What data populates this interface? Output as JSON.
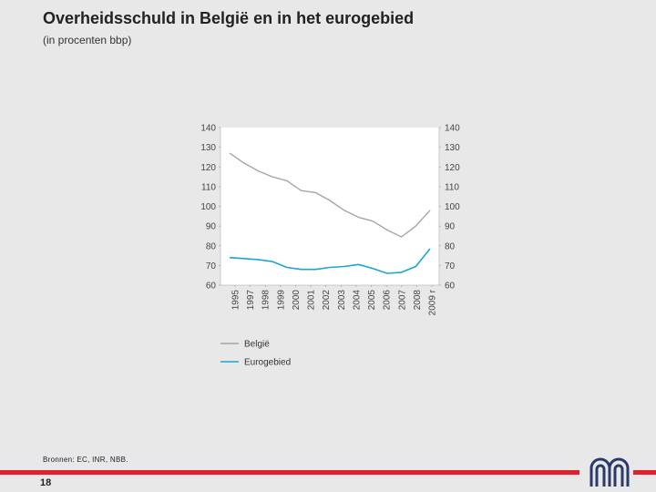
{
  "header": {
    "title": "Overheidsschuld in België en in het eurogebied",
    "subtitle": "(in procenten bbp)"
  },
  "footer": {
    "source": "Bronnen: EC, INR, NBB.",
    "page_number": "18"
  },
  "colors": {
    "belgie": "#a6a6a6",
    "eurogebied": "#1aa6d6",
    "accent_red": "#e0202a",
    "logo": "#2a3a6b"
  },
  "chart_data": {
    "type": "line",
    "title": "Overheidsschuld in België en in het eurogebied",
    "ylabel": "(in procenten bbp)",
    "categories": [
      "1995",
      "1997",
      "1998",
      "1999",
      "2000",
      "2001",
      "2002",
      "2003",
      "2004",
      "2005",
      "2006",
      "2007",
      "2008",
      "2009 r"
    ],
    "left_axis": {
      "ticks": [
        "140",
        "130",
        "120",
        "110",
        "100",
        "90",
        "80",
        "70",
        "60"
      ],
      "ylim": [
        60,
        140
      ]
    },
    "right_axis": {
      "ticks": [
        "140",
        "130",
        "120",
        "110",
        "100",
        "90",
        "80",
        "70",
        "60"
      ],
      "ylim": [
        60,
        140
      ]
    },
    "series": [
      {
        "name": "België",
        "values": [
          [
            1995,
            127
          ],
          [
            1996,
            122
          ],
          [
            1997,
            118
          ],
          [
            1998,
            115
          ],
          [
            1999,
            113
          ],
          [
            2000,
            108
          ],
          [
            2001,
            107
          ],
          [
            2002,
            103
          ],
          [
            2003,
            98
          ],
          [
            2004,
            94.5
          ],
          [
            2005,
            92.5
          ],
          [
            2006,
            88
          ],
          [
            2007,
            84.5
          ],
          [
            2008,
            90
          ],
          [
            2009,
            98
          ]
        ]
      },
      {
        "name": "Eurogebied",
        "values": [
          [
            1995,
            74
          ],
          [
            1996,
            73.5
          ],
          [
            1997,
            73
          ],
          [
            1998,
            72
          ],
          [
            1999,
            69
          ],
          [
            2000,
            68
          ],
          [
            2001,
            68
          ],
          [
            2002,
            69
          ],
          [
            2003,
            69.5
          ],
          [
            2004,
            70.5
          ],
          [
            2005,
            68.5
          ],
          [
            2006,
            66
          ],
          [
            2007,
            66.5
          ],
          [
            2008,
            69.5
          ],
          [
            2009,
            78.5
          ]
        ]
      }
    ],
    "legend": [
      "België",
      "Eurogebied"
    ],
    "legend_position": "bottom-left"
  }
}
